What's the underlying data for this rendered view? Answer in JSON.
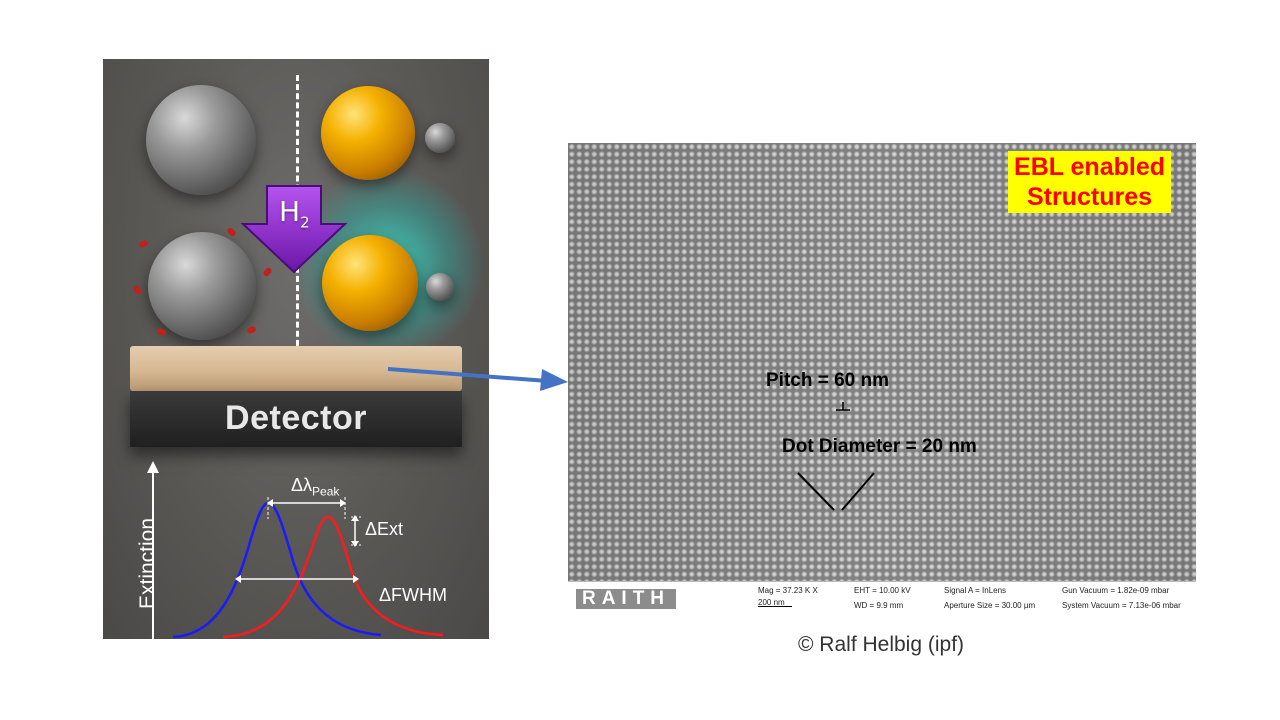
{
  "left_illustration": {
    "h2_label": "H",
    "h2_subscript": "2",
    "detector_label": "Detector",
    "plot": {
      "ylabel": "Extinction",
      "delta_lambda": "Δλ",
      "delta_lambda_sub": "Peak",
      "delta_ext": "ΔExt",
      "delta_fwhm": "ΔFWHM",
      "curve_colors": {
        "before": "#1a1aff",
        "after": "#ff1a1a"
      }
    },
    "colors": {
      "arrow": "#9b30d9",
      "glow": "#3fd9c6",
      "molecule": "#c0221a"
    }
  },
  "sem_image": {
    "badge_line1": "EBL enabled",
    "badge_line2": "Structures",
    "pitch_label": "Pitch = 60 nm",
    "diameter_label": "Dot Diameter = 20 nm",
    "colors": {
      "badge_bg": "#ffff00",
      "badge_text": "#ff0000"
    },
    "infobar": {
      "logo": "RAITH",
      "mag": "Mag =   37.23 K X",
      "scale": "200 nm",
      "eht": "EHT = 10.00 kV",
      "wd": "WD =  9.9 mm",
      "signal": "Signal A = InLens",
      "aperture": "Aperture Size = 30.00 µm",
      "gun_vacuum": "Gun Vacuum = 1.82e-09 mbar",
      "system_vacuum": "System Vacuum = 7.13e-06 mbar"
    }
  },
  "connector_arrow_color": "#4472c4",
  "credit": "© Ralf Helbig (ipf)"
}
